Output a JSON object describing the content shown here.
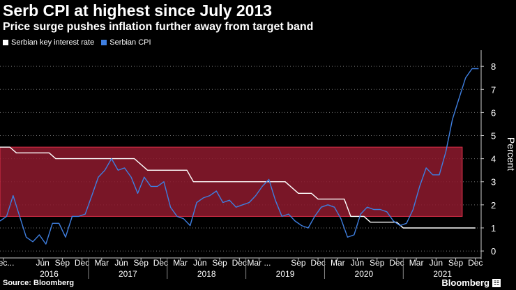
{
  "title": "Serb CPI at highest since July 2013",
  "subtitle": "Price surge pushes inflation further away from target band",
  "legend": [
    {
      "label": "Serbian key interest rate",
      "color": "#ffffff"
    },
    {
      "label": "Serbian CPI",
      "color": "#3f7fe0"
    }
  ],
  "source": "Source: Bloomberg",
  "brand": "Bloomberg",
  "colors": {
    "band_fill": "#8e1a2e",
    "band_stroke": "#e0304a",
    "grid": "#777777",
    "cpi": "#3f7fe0",
    "rate": "#ffffff"
  },
  "chart_data": {
    "type": "line",
    "ylabel": "Percent",
    "ylim": [
      -0.3,
      8.7
    ],
    "yticks": [
      0,
      1,
      2,
      3,
      4,
      5,
      6,
      7,
      8
    ],
    "xlim": [
      2015.875,
      2021.99
    ],
    "x_tick_labels": [
      {
        "label": "Dec...",
        "x": 2015.917
      },
      {
        "label": "Jun",
        "x": 2016.417
      },
      {
        "label": "Sep",
        "x": 2016.667
      },
      {
        "label": "Dec",
        "x": 2016.917
      },
      {
        "label": "Mar",
        "x": 2017.167
      },
      {
        "label": "Jun",
        "x": 2017.417
      },
      {
        "label": "Sep",
        "x": 2017.667
      },
      {
        "label": "Dec",
        "x": 2017.917
      },
      {
        "label": "Mar",
        "x": 2018.167
      },
      {
        "label": "Jun",
        "x": 2018.417
      },
      {
        "label": "Sep",
        "x": 2018.667
      },
      {
        "label": "Dec",
        "x": 2018.917
      },
      {
        "label": "Mar ...",
        "x": 2019.167
      },
      {
        "label": "Sep",
        "x": 2019.667
      },
      {
        "label": "Dec",
        "x": 2019.917
      },
      {
        "label": "Mar",
        "x": 2020.167
      },
      {
        "label": "Jun",
        "x": 2020.417
      },
      {
        "label": "Sep",
        "x": 2020.667
      },
      {
        "label": "Dec",
        "x": 2020.917
      },
      {
        "label": "Mar",
        "x": 2021.167
      },
      {
        "label": "Jun",
        "x": 2021.417
      },
      {
        "label": "Sep",
        "x": 2021.667
      },
      {
        "label": "Dec",
        "x": 2021.917
      }
    ],
    "year_labels": [
      {
        "label": "2016",
        "x": 2016.5
      },
      {
        "label": "2017",
        "x": 2017.5
      },
      {
        "label": "2018",
        "x": 2018.5
      },
      {
        "label": "2019",
        "x": 2019.5
      },
      {
        "label": "2020",
        "x": 2020.5
      },
      {
        "label": "2021",
        "x": 2021.5
      }
    ],
    "target_band": {
      "lower": 1.5,
      "upper": 4.5,
      "x_start": 2015.875,
      "x_end": 2021.75
    },
    "series": [
      {
        "name": "Serbian key interest rate",
        "color": "#ffffff",
        "x": [
          2015.875,
          2016.0,
          2016.083,
          2016.5,
          2016.583,
          2017.583,
          2017.75,
          2018.25,
          2018.333,
          2019.5,
          2019.667,
          2019.833,
          2019.917,
          2020.25,
          2020.333,
          2020.5,
          2020.583,
          2020.917,
          2021.0,
          2021.917
        ],
        "y": [
          4.5,
          4.5,
          4.25,
          4.25,
          4.0,
          4.0,
          3.5,
          3.5,
          3.0,
          3.0,
          2.5,
          2.5,
          2.25,
          2.25,
          1.5,
          1.5,
          1.25,
          1.25,
          1.0,
          1.0
        ]
      },
      {
        "name": "Serbian CPI",
        "color": "#3f7fe0",
        "x": [
          2015.875,
          2015.958,
          2016.042,
          2016.125,
          2016.208,
          2016.292,
          2016.375,
          2016.458,
          2016.542,
          2016.625,
          2016.708,
          2016.792,
          2016.875,
          2016.958,
          2017.042,
          2017.125,
          2017.208,
          2017.292,
          2017.375,
          2017.458,
          2017.542,
          2017.625,
          2017.708,
          2017.792,
          2017.875,
          2017.958,
          2018.042,
          2018.125,
          2018.208,
          2018.292,
          2018.375,
          2018.458,
          2018.542,
          2018.625,
          2018.708,
          2018.792,
          2018.875,
          2018.958,
          2019.042,
          2019.125,
          2019.208,
          2019.292,
          2019.375,
          2019.458,
          2019.542,
          2019.625,
          2019.708,
          2019.792,
          2019.875,
          2019.958,
          2020.042,
          2020.125,
          2020.208,
          2020.292,
          2020.375,
          2020.458,
          2020.542,
          2020.625,
          2020.708,
          2020.792,
          2020.875,
          2020.958,
          2021.042,
          2021.125,
          2021.208,
          2021.292,
          2021.375,
          2021.458,
          2021.542,
          2021.625,
          2021.708,
          2021.792,
          2021.875,
          2021.958
        ],
        "y": [
          1.3,
          1.5,
          2.4,
          1.5,
          0.6,
          0.4,
          0.7,
          0.3,
          1.2,
          1.2,
          0.6,
          1.5,
          1.5,
          1.6,
          2.4,
          3.2,
          3.5,
          4.0,
          3.5,
          3.6,
          3.2,
          2.5,
          3.2,
          2.8,
          2.8,
          3.0,
          1.9,
          1.5,
          1.4,
          1.1,
          2.1,
          2.3,
          2.4,
          2.6,
          2.1,
          2.2,
          1.9,
          2.0,
          2.1,
          2.4,
          2.8,
          3.1,
          2.2,
          1.5,
          1.6,
          1.3,
          1.1,
          1.0,
          1.5,
          1.9,
          2.0,
          1.9,
          1.4,
          0.6,
          0.7,
          1.6,
          1.9,
          1.8,
          1.8,
          1.7,
          1.3,
          1.1,
          1.2,
          1.8,
          2.8,
          3.6,
          3.3,
          3.3,
          4.3,
          5.7,
          6.6,
          7.5,
          7.9,
          7.9
        ]
      }
    ]
  }
}
